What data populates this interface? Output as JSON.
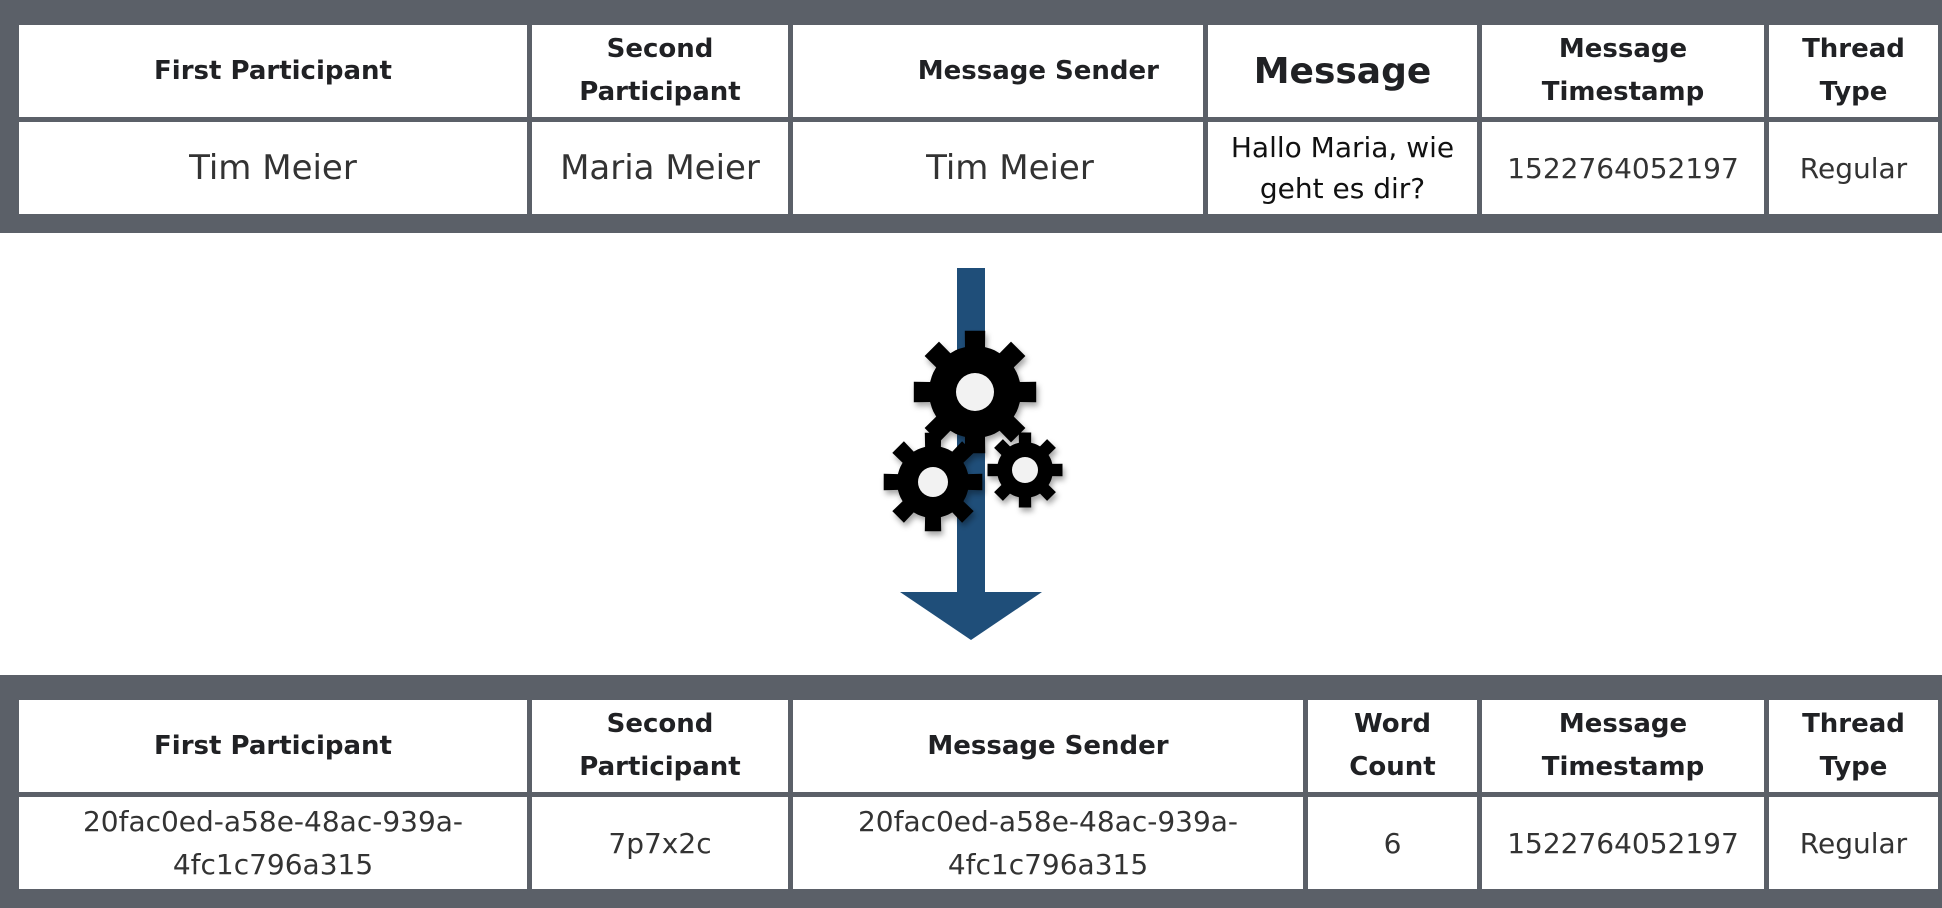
{
  "top_table": {
    "headers": [
      "First Participant",
      "Second Participant",
      "Message Sender",
      "Message",
      "Message Timestamp",
      "Thread Type"
    ],
    "row": [
      "Tim Meier",
      "Maria Meier",
      "Tim Meier",
      "Hallo Maria, wie geht es dir?",
      "1522764052197",
      "Regular"
    ]
  },
  "bottom_table": {
    "headers": [
      "First Participant",
      "Second Participant",
      "Message Sender",
      "Word Count",
      "Message Timestamp",
      "Thread Type"
    ],
    "row": [
      "20fac0ed-a58e-48ac-939a-4fc1c796a315",
      "7p7x2c",
      "20fac0ed-a58e-48ac-939a-4fc1c796a315",
      "6",
      "1522764052197",
      "Regular"
    ]
  },
  "colors": {
    "panel": "#5b6068",
    "arrow": "#1f4e79",
    "gear": "#000000"
  },
  "icons": [
    "down-arrow-icon",
    "gears-icon"
  ]
}
